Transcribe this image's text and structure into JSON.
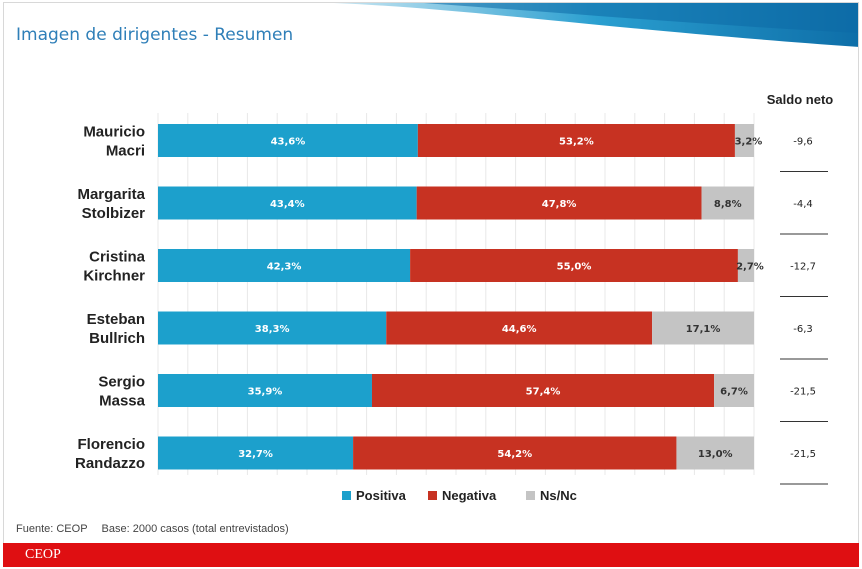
{
  "title": "Imagen de dirigentes - Resumen",
  "chart_data": {
    "type": "bar",
    "orientation": "horizontal",
    "stacked": true,
    "normalized_percent": true,
    "categories": [
      [
        "Mauricio",
        "Macri"
      ],
      [
        "Margarita",
        "Stolbizer"
      ],
      [
        "Cristina",
        "Kirchner"
      ],
      [
        "Esteban",
        "Bullrich"
      ],
      [
        "Sergio",
        "Massa"
      ],
      [
        "Florencio",
        "Randazzo"
      ]
    ],
    "series": [
      {
        "name": "Positiva",
        "color": "#1ca0cc",
        "values": [
          43.6,
          43.4,
          42.3,
          38.3,
          35.9,
          32.7
        ],
        "labels": [
          "43,6%",
          "43,4%",
          "42,3%",
          "38,3%",
          "35,9%",
          "32,7%"
        ]
      },
      {
        "name": "Negativa",
        "color": "#c73222",
        "values": [
          53.2,
          47.8,
          55.0,
          44.6,
          57.4,
          54.2
        ],
        "labels": [
          "53,2%",
          "47,8%",
          "55,0%",
          "44,6%",
          "57,4%",
          "54,2%"
        ]
      },
      {
        "name": "Ns/Nc",
        "color": "#c4c4c4",
        "values": [
          3.2,
          8.8,
          2.7,
          17.1,
          6.7,
          13.0
        ],
        "labels": [
          "3,2%",
          "8,8%",
          "2,7%",
          "17,1%",
          "6,7%",
          "13,0%"
        ]
      }
    ],
    "saldo_neto": {
      "header": "Saldo neto",
      "values": [
        "-9,6",
        "-4,4",
        "-12,7",
        "-6,3",
        "-21,5",
        "-21,5"
      ]
    },
    "legend_position": "bottom",
    "grid": true
  },
  "footer": {
    "source": "Fuente: CEOP",
    "base": "Base: 2000 casos (total entrevistados)",
    "brand": "CEOP"
  }
}
